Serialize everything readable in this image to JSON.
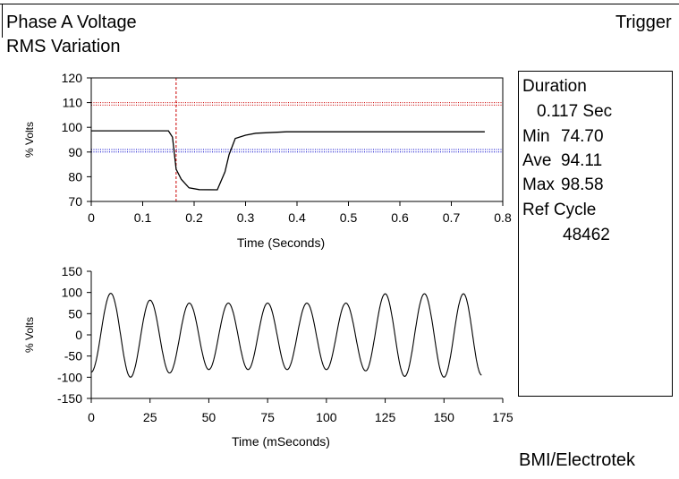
{
  "header": {
    "title_line1": "Phase A Voltage",
    "title_line2": "RMS Variation",
    "trigger_label": "Trigger"
  },
  "stats": {
    "duration_label": "Duration",
    "duration_value": "0.117 Sec",
    "min_label": "Min",
    "min_value": "74.70",
    "ave_label": "Ave",
    "ave_value": "94.11",
    "max_label": "Max",
    "max_value": "98.58",
    "ref_cycle_label": "Ref Cycle",
    "ref_cycle_value": "48462"
  },
  "footer": {
    "brand": "BMI/Electrotek"
  },
  "chart_data": [
    {
      "type": "line",
      "title": "",
      "xlabel": "Time (Seconds)",
      "ylabel": "% Volts",
      "xlim": [
        0,
        0.8
      ],
      "ylim": [
        70,
        120
      ],
      "x_ticks": [
        "0",
        "0.1",
        "0.2",
        "0.3",
        "0.4",
        "0.5",
        "0.6",
        "0.7",
        "0.8"
      ],
      "y_ticks": [
        "70",
        "80",
        "90",
        "100",
        "110",
        "120"
      ],
      "series": [
        {
          "color": "#000000",
          "x": [
            0,
            0.15,
            0.158,
            0.165,
            0.175,
            0.19,
            0.21,
            0.245,
            0.26,
            0.268,
            0.28,
            0.3,
            0.32,
            0.38,
            0.5,
            0.6,
            0.7,
            0.765
          ],
          "y": [
            98.6,
            98.6,
            96,
            83,
            79,
            75.5,
            74.8,
            74.7,
            82,
            89,
            95.5,
            96.8,
            97.6,
            98.2,
            98.2,
            98.2,
            98.2,
            98.2
          ]
        }
      ],
      "reference_lines": [
        {
          "axis": "y",
          "value": 110,
          "color": "#cc0000",
          "style": "dotted"
        },
        {
          "axis": "y",
          "value": 109,
          "color": "#cc0000",
          "style": "dotted"
        },
        {
          "axis": "y",
          "value": 91,
          "color": "#0000cc",
          "style": "dotted"
        },
        {
          "axis": "y",
          "value": 90,
          "color": "#0000cc",
          "style": "dotted"
        },
        {
          "axis": "x",
          "value": 0.165,
          "color": "#cc0000",
          "style": "dashed"
        }
      ]
    },
    {
      "type": "line",
      "title": "",
      "xlabel": "Time (mSeconds)",
      "ylabel": "% Volts",
      "xlim": [
        0,
        175
      ],
      "ylim": [
        -150,
        150
      ],
      "x_ticks": [
        "0",
        "25",
        "50",
        "75",
        "100",
        "125",
        "150",
        "175"
      ],
      "y_ticks": [
        "150",
        "100",
        "50",
        "0",
        "-50",
        "-100",
        "-150"
      ],
      "series": [
        {
          "color": "#000000",
          "waveform": {
            "frequency_hz": 60,
            "start_ms": 0,
            "end_ms": 166,
            "initial_value": -88,
            "peaks": [
              {
                "t": 8.3,
                "v": 98
              },
              {
                "t": 16.7,
                "v": -100
              },
              {
                "t": 25,
                "v": 82
              },
              {
                "t": 33.3,
                "v": -90
              },
              {
                "t": 41.7,
                "v": 75
              },
              {
                "t": 50,
                "v": -82
              },
              {
                "t": 58.3,
                "v": 75
              },
              {
                "t": 66.7,
                "v": -82
              },
              {
                "t": 75,
                "v": 75
              },
              {
                "t": 83.3,
                "v": -82
              },
              {
                "t": 91.7,
                "v": 75
              },
              {
                "t": 100,
                "v": -82
              },
              {
                "t": 108.3,
                "v": 75
              },
              {
                "t": 116.7,
                "v": -85
              },
              {
                "t": 125,
                "v": 97
              },
              {
                "t": 133.3,
                "v": -98
              },
              {
                "t": 141.7,
                "v": 97
              },
              {
                "t": 150,
                "v": -100
              },
              {
                "t": 158.3,
                "v": 97
              }
            ],
            "final_value": -95
          }
        }
      ]
    }
  ]
}
